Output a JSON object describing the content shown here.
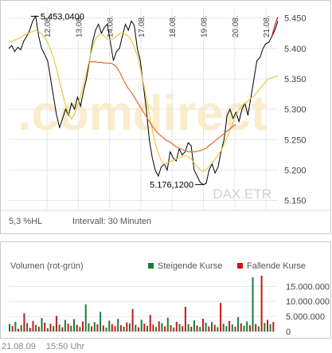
{
  "chart_data": [
    {
      "type": "line",
      "title": "",
      "watermark": ".comdirect",
      "instrument": "DAX.ETR",
      "x_tick_labels": [
        "12.08.",
        "13.08.",
        "14.08.",
        "17.08.",
        "18.08.",
        "19.08.",
        "20.08.",
        "21.08."
      ],
      "y_ticks": [
        "5.450",
        "5.400",
        "5.350",
        "5.300",
        "5.250",
        "5.200",
        "5.150"
      ],
      "y_tick_values": [
        5450,
        5400,
        5350,
        5300,
        5250,
        5200,
        5150
      ],
      "ylim": [
        5135,
        5468
      ],
      "grid": true,
      "bottom_left_label": "5,3 %HL",
      "interval_label": "Intervall: 30 Minuten",
      "annotations": [
        {
          "label": "5.453,0400",
          "value": 5453.04
        },
        {
          "label": "5.176,1200",
          "value": 5176.12
        }
      ],
      "series": [
        {
          "name": "",
          "color": "#000000",
          "values": [
            5400,
            5405,
            5395,
            5402,
            5398,
            5412,
            5420,
            5430,
            5445,
            5453,
            5420,
            5400,
            5390,
            5380,
            5350,
            5320,
            5290,
            5270,
            5285,
            5300,
            5290,
            5310,
            5300,
            5320,
            5305,
            5330,
            5350,
            5380,
            5410,
            5430,
            5440,
            5425,
            5435,
            5440,
            5410,
            5380,
            5395,
            5400,
            5420,
            5440,
            5430,
            5445,
            5438,
            5400,
            5380,
            5340,
            5300,
            5250,
            5220,
            5200,
            5190,
            5205,
            5210,
            5200,
            5230,
            5220,
            5215,
            5235,
            5225,
            5230,
            5245,
            5240,
            5200,
            5190,
            5180,
            5176,
            5178,
            5200,
            5210,
            5195,
            5205,
            5230,
            5250,
            5290,
            5300,
            5285,
            5295,
            5280,
            5300,
            5310,
            5290,
            5320,
            5350,
            5380,
            5385,
            5400,
            5408,
            5410,
            5420,
            5430,
            5445
          ]
        },
        {
          "name": "",
          "color": "#e8c840",
          "values": [
            5410,
            5412,
            5414,
            5416,
            5418,
            5422,
            5424,
            5426,
            5428,
            5430,
            5428,
            5424,
            5418,
            5410,
            5398,
            5384,
            5366,
            5346,
            5326,
            5306,
            5292,
            5284,
            5292,
            5306,
            5322,
            5340,
            5360,
            5382,
            5402,
            5416,
            5422,
            5424,
            5420,
            5416,
            5414,
            5416,
            5420,
            5424,
            5426,
            5424,
            5420,
            5414,
            5402,
            5388,
            5368,
            5344,
            5318,
            5292,
            5266,
            5244,
            5228,
            5216,
            5210,
            5212,
            5214,
            5216,
            5218,
            5220,
            5222,
            5224,
            5222,
            5218,
            5212,
            5206,
            5200,
            5198,
            5200,
            5206,
            5212,
            5218,
            5224,
            5232,
            5242,
            5254,
            5266,
            5278,
            5290,
            5300,
            5306,
            5310,
            5314,
            5318,
            5322,
            5328,
            5334,
            5340,
            5346,
            5350,
            5352,
            5354,
            5355
          ]
        },
        {
          "name": "",
          "color": "#e06a2a",
          "values": [
            null,
            null,
            null,
            null,
            null,
            null,
            null,
            null,
            null,
            null,
            null,
            null,
            null,
            null,
            null,
            null,
            null,
            null,
            null,
            null,
            null,
            null,
            null,
            null,
            null,
            null,
            null,
            5378,
            5378,
            5378,
            5377,
            5377,
            5376,
            5376,
            5376,
            5374,
            5370,
            5362,
            5352,
            5342,
            5334,
            5328,
            5320,
            5312,
            5304,
            5296,
            5288,
            5280,
            5272,
            5266,
            5260,
            5256,
            5252,
            5248,
            5246,
            5242,
            5238,
            5236,
            5234,
            5232,
            5230,
            5230,
            5230,
            5231,
            5232,
            5234,
            5236,
            5240,
            5244,
            5248,
            5252,
            5256,
            5260,
            5264,
            5268,
            5272,
            5275
          ]
        },
        {
          "name": "",
          "color": "#d81818",
          "values": [
            5420,
            5438,
            5452
          ]
        }
      ]
    },
    {
      "type": "bar",
      "title": "Volumen (rot-grün)",
      "legend": [
        {
          "label": "Steigende Kurse",
          "color": "#1a7a3a"
        },
        {
          "label": "Fallende Kurse",
          "color": "#c81818"
        }
      ],
      "y_ticks": [
        "15.000.000",
        "10.000.000",
        "5.000.000",
        "0"
      ],
      "y_tick_values": [
        15000000,
        10000000,
        5000000,
        0
      ],
      "ylim": [
        0,
        18000000
      ],
      "values": [
        2500000,
        1800000,
        3200000,
        900000,
        2100000,
        6000000,
        2800000,
        1200000,
        3500000,
        2200000,
        1600000,
        4500000,
        2900000,
        1100000,
        2600000,
        1800000,
        5200000,
        2300000,
        1400000,
        3800000,
        2600000,
        1900000,
        4100000,
        2200000,
        1500000,
        3300000,
        9000000,
        2800000,
        1700000,
        3100000,
        2400000,
        6500000,
        2000000,
        1300000,
        3600000,
        2500000,
        1800000,
        4200000,
        2100000,
        1600000,
        3000000,
        2700000,
        7500000,
        2200000,
        1400000,
        3900000,
        2600000,
        1900000,
        5500000,
        2300000,
        1500000,
        3400000,
        2800000,
        1700000,
        4600000,
        2100000,
        1300000,
        3200000,
        2500000,
        1800000,
        8200000,
        2400000,
        1600000,
        3700000,
        2000000,
        1500000,
        4300000,
        2900000,
        1700000,
        3100000,
        2200000,
        1400000,
        9500000,
        2600000,
        1800000,
        3500000,
        2300000,
        1600000,
        4800000,
        2700000,
        1900000,
        3300000,
        2100000,
        18000000,
        2500000,
        1700000,
        18500000,
        2800000,
        3900000,
        2400000,
        3200000
      ],
      "colors": [
        "g",
        "r",
        "g",
        "r",
        "g",
        "r",
        "g",
        "r",
        "r",
        "g",
        "r",
        "g",
        "r",
        "g",
        "r",
        "g",
        "r",
        "g",
        "r",
        "g",
        "r",
        "g",
        "g",
        "r",
        "g",
        "r",
        "g",
        "g",
        "r",
        "g",
        "r",
        "g",
        "r",
        "g",
        "g",
        "r",
        "r",
        "g",
        "r",
        "g",
        "r",
        "g",
        "r",
        "g",
        "r",
        "g",
        "r",
        "g",
        "r",
        "r",
        "g",
        "r",
        "g",
        "r",
        "g",
        "r",
        "g",
        "r",
        "g",
        "r",
        "r",
        "g",
        "r",
        "g",
        "r",
        "g",
        "r",
        "g",
        "r",
        "g",
        "r",
        "g",
        "r",
        "g",
        "g",
        "r",
        "g",
        "r",
        "g",
        "r",
        "g",
        "g",
        "r",
        "g",
        "r",
        "g",
        "r",
        "g",
        "r",
        "g",
        "r"
      ]
    }
  ],
  "footer": {
    "date": "21.08.09",
    "time": "15:50 Uhr"
  }
}
